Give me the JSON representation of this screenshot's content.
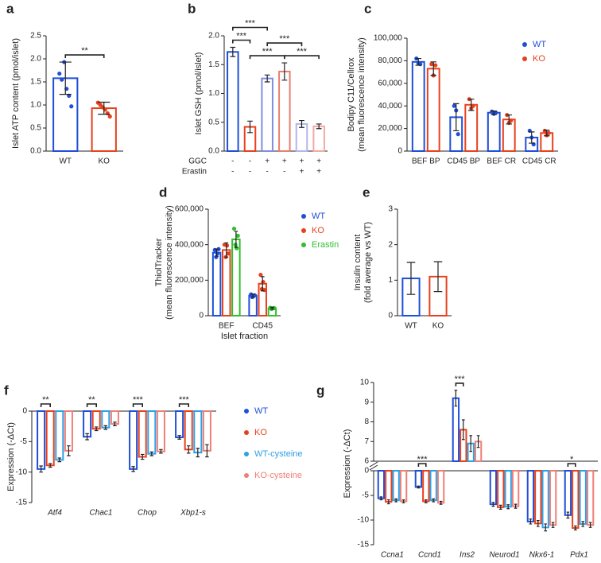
{
  "chart_data": [
    {
      "type": "bar",
      "label": "a",
      "ylabel": [
        "Islet ATP content (pmol/islet)"
      ],
      "categories": [
        "WT",
        "KO"
      ],
      "ylim": [
        0,
        2.5
      ],
      "yticks": [
        {
          "value": 0,
          "label": "0.0"
        },
        0.5,
        {
          "value": 1,
          "label": "1.0"
        },
        1.5,
        {
          "value": 2,
          "label": "2.0"
        },
        2.5
      ],
      "series": [
        {
          "colors": [
            "#1f4fd8",
            "#e8401c"
          ],
          "values": [
            1.58,
            0.93
          ],
          "errors": [
            0.35,
            0.13
          ],
          "points": [
            [
              1.68,
              1.55,
              1.93,
              1.35,
              1.2,
              0.97
            ],
            [
              1.05,
              1.0,
              0.95,
              0.9,
              0.82,
              0.75
            ]
          ]
        }
      ],
      "significance": [
        {
          "pair": [
            0,
            1
          ],
          "label": "**"
        }
      ]
    },
    {
      "type": "bar",
      "label": "b",
      "ylabel": [
        "Islet GSH (pmol/islet)"
      ],
      "categories": [
        null,
        null,
        null,
        null,
        null,
        null
      ],
      "ylim": [
        0,
        2
      ],
      "yticks": [
        {
          "value": 0,
          "label": "0.0"
        },
        0.5,
        {
          "value": 1,
          "label": "1.0"
        },
        1.5,
        {
          "value": 2,
          "label": "2.0"
        }
      ],
      "series": [
        {
          "colors": [
            "#1f4fd8",
            "#e8401c",
            "#7f8de0",
            "#e87f6f",
            "#b4b4ee",
            "#f2aaa0"
          ],
          "values": [
            1.72,
            0.42,
            1.26,
            1.38,
            0.47,
            0.43
          ],
          "errors": [
            0.08,
            0.1,
            0.06,
            0.15,
            0.06,
            0.04
          ]
        }
      ],
      "conditions": [
        {
          "name": "GGC",
          "marks": [
            "-",
            "-",
            "+",
            "+",
            "+",
            "+"
          ]
        },
        {
          "name": "Erastin",
          "marks": [
            "-",
            "-",
            "-",
            "-",
            "+",
            "+"
          ]
        }
      ],
      "significance": [
        {
          "pair": [
            0,
            1
          ],
          "label": "***"
        },
        {
          "pair": [
            1,
            3
          ],
          "label": "***"
        },
        {
          "pair": [
            3,
            5
          ],
          "label": "***"
        },
        {
          "pair": [
            0,
            2
          ],
          "label": "***"
        },
        {
          "pair": [
            2,
            4
          ],
          "label": "***"
        }
      ]
    },
    {
      "type": "bar",
      "label": "c",
      "ylabel": [
        "Bodipy C11/Cellrox",
        "(mean fluorescence intensity)"
      ],
      "categories": [
        "BEF BP",
        "CD45 BP",
        "BEF CR",
        "CD45 CR"
      ],
      "ylim": [
        0,
        100000
      ],
      "yticks": [
        0,
        {
          "value": 20000,
          "label": "20,000"
        },
        {
          "value": 40000,
          "label": "40,000"
        },
        {
          "value": 60000,
          "label": "60,000"
        },
        {
          "value": 80000,
          "label": "80,000"
        },
        {
          "value": 100000,
          "label": "100,000"
        }
      ],
      "legend": "upper right",
      "series": [
        {
          "name": "WT",
          "color": "#1f4fd8",
          "values": [
            79000,
            30000,
            34000,
            12000
          ],
          "errors": [
            3000,
            12000,
            1500,
            5000
          ],
          "points": [
            [
              82000,
              78000,
              77000
            ],
            [
              40000,
              36000,
              15000
            ],
            [
              35000,
              33000,
              34000
            ],
            [
              18000,
              12000,
              6000
            ]
          ]
        },
        {
          "name": "KO",
          "color": "#e8401c",
          "values": [
            73000,
            41000,
            28000,
            16000
          ],
          "errors": [
            6000,
            5000,
            4000,
            2500
          ],
          "points": [
            [
              77000,
              67000,
              76000
            ],
            [
              46000,
              38000,
              40000
            ],
            [
              32000,
              25000,
              27000
            ],
            [
              18000,
              14000,
              16000
            ]
          ]
        }
      ]
    },
    {
      "type": "bar",
      "label": "d",
      "ylabel": [
        "ThiolTracker",
        "(mean fluorescence intensity)"
      ],
      "xlabel": "Islet fraction",
      "categories": [
        "BEF",
        "CD45"
      ],
      "ylim": [
        0,
        600000
      ],
      "yticks": [
        0,
        {
          "value": 200000,
          "label": "200,000"
        },
        {
          "value": 400000,
          "label": "400,000"
        },
        {
          "value": 600000,
          "label": "600,000"
        }
      ],
      "legend": "right",
      "series": [
        {
          "name": "WT",
          "color": "#1f4fd8",
          "values": [
            355000,
            113000
          ],
          "errors": [
            20000,
            8000
          ],
          "points": [
            [
              370000,
              330000,
              350000,
              375000
            ],
            [
              120000,
              105000,
              110000,
              115000
            ]
          ]
        },
        {
          "name": "KO",
          "color": "#e8401c",
          "values": [
            370000,
            180000
          ],
          "errors": [
            40000,
            40000
          ],
          "points": [
            [
              400000,
              330000,
              395000,
              350000
            ],
            [
              230000,
              150000,
              190000,
              145000
            ]
          ]
        },
        {
          "name": "Erastin",
          "color": "#2fbf2f",
          "values": [
            430000,
            42000
          ],
          "errors": [
            45000,
            5000
          ],
          "points": [
            [
              490000,
              400000,
              380000,
              450000
            ],
            [
              45000,
              38000,
              42000,
              43000
            ]
          ]
        }
      ]
    },
    {
      "type": "bar",
      "label": "e",
      "ylabel": [
        "Insulin content",
        "(fold average vs WT)"
      ],
      "categories": [
        "WT",
        "KO"
      ],
      "ylim": [
        0,
        3
      ],
      "yticks": [
        0,
        1,
        2,
        3
      ],
      "series": [
        {
          "colors": [
            "#1f4fd8",
            "#e8401c"
          ],
          "values": [
            1.05,
            1.1
          ],
          "errors": [
            0.45,
            0.42
          ]
        }
      ]
    },
    {
      "type": "bar",
      "label": "f",
      "ylabel": [
        "Expression (-ΔCt)"
      ],
      "italic_categories": true,
      "categories": [
        "Atf4",
        "Chac1",
        "Chop",
        "Xbp1-s"
      ],
      "ylim": [
        -15,
        0
      ],
      "yticks": [
        0,
        -5,
        -10,
        -15
      ],
      "legend": "right",
      "series": [
        {
          "name": "WT",
          "color": "#1f4fd8",
          "values": [
            -9.5,
            -4.2,
            -9.5,
            -4.3
          ],
          "errors": [
            0.5,
            0.5,
            0.4,
            0.3
          ]
        },
        {
          "name": "KO",
          "color": "#e8401c",
          "values": [
            -8.9,
            -2.9,
            -7.5,
            -6.3
          ],
          "errors": [
            0.3,
            0.3,
            0.4,
            0.6
          ]
        },
        {
          "name": "WT-cysteine",
          "color": "#2ea0e6",
          "values": [
            -8,
            -2.7,
            -7,
            -6.8
          ],
          "errors": [
            0.3,
            0.3,
            0.3,
            0.7
          ]
        },
        {
          "name": "KO-cysteine",
          "color": "#ef7f76",
          "values": [
            -6.5,
            -2.1,
            -6.6,
            -6.5
          ],
          "errors": [
            0.8,
            0.3,
            0.3,
            1.0
          ]
        }
      ],
      "significance": [
        {
          "category": 0,
          "pair": [
            0,
            1
          ],
          "label": "**"
        },
        {
          "category": 1,
          "pair": [
            0,
            1
          ],
          "label": "**"
        },
        {
          "category": 2,
          "pair": [
            0,
            1
          ],
          "label": "***"
        },
        {
          "category": 3,
          "pair": [
            0,
            1
          ],
          "label": "***"
        }
      ]
    },
    {
      "type": "bar",
      "label": "g",
      "ylabel": [
        "Expression (-ΔCt)"
      ],
      "italic_categories": true,
      "categories": [
        "Ccna1",
        "Ccnd1",
        "Ins2",
        "Neurod1",
        "Nkx6-1",
        "Pdx1"
      ],
      "ylim": [
        -15,
        10
      ],
      "axis_break": [
        0,
        6
      ],
      "yticks": [
        10,
        9,
        8,
        7,
        6,
        0,
        -5,
        -10,
        -15
      ],
      "series": [
        {
          "color": "#1f4fd8",
          "values": [
            -5.6,
            -3.3,
            9.2,
            -6.8,
            -10.3,
            -9.0
          ],
          "errors": [
            0.3,
            0.2,
            0.4,
            0.4,
            0.5,
            0.6
          ]
        },
        {
          "color": "#e8401c",
          "values": [
            -6.3,
            -6.2,
            7.6,
            -7.4,
            -10.7,
            -11.6
          ],
          "errors": [
            0.4,
            0.3,
            0.5,
            0.4,
            0.6,
            0.4
          ]
        },
        {
          "color": "#2ea0e6",
          "values": [
            -6.0,
            -6.0,
            6.9,
            -7.3,
            -11.5,
            -10.8
          ],
          "errors": [
            0.3,
            0.3,
            0.4,
            0.4,
            0.7,
            0.5
          ]
        },
        {
          "color": "#ef7f76",
          "values": [
            -6.2,
            -6.5,
            7.0,
            -7.2,
            -11.0,
            -11.0
          ],
          "errors": [
            0.3,
            0.3,
            0.3,
            0.4,
            0.5,
            0.5
          ]
        }
      ],
      "significance": [
        {
          "category": 1,
          "pair": [
            0,
            1
          ],
          "label": "***"
        },
        {
          "category": 2,
          "pair": [
            0,
            1
          ],
          "label": "***"
        },
        {
          "category": 5,
          "pair": [
            0,
            1
          ],
          "label": "*"
        }
      ]
    }
  ]
}
